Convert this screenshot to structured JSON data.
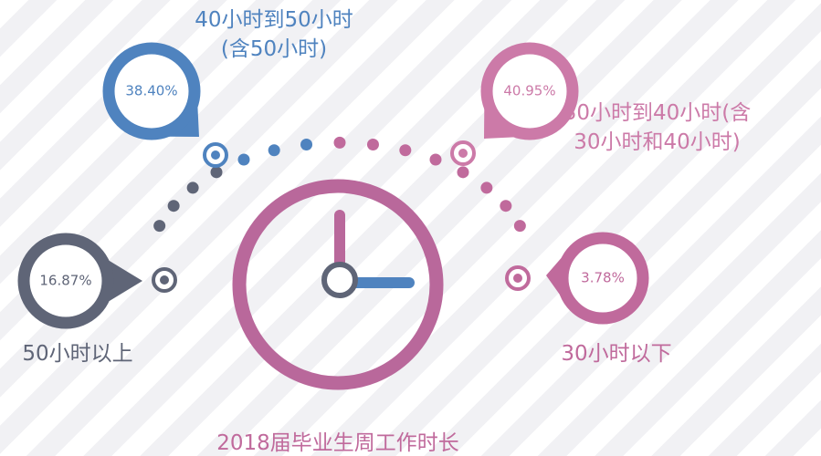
{
  "chart_data": {
    "type": "clock-infographic",
    "title": "2018届毕业生周工作时长",
    "categories": [
      "50小时以上",
      "40小时到50小时(含50小时)",
      "30小时到40小时(含30小时和40小时)",
      "30小时以下"
    ],
    "values": [
      16.87,
      38.4,
      40.95,
      3.78
    ],
    "value_labels": [
      "16.87%",
      "38.40%",
      "40.95%",
      "3.78%"
    ],
    "colors": [
      "#5f6577",
      "#4f83bf",
      "#cc7aa8",
      "#c06a9c"
    ]
  }
}
